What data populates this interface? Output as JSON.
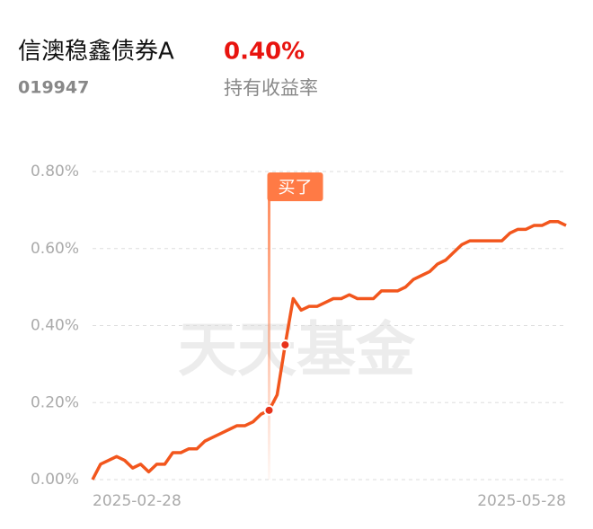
{
  "header": {
    "fund_name": "信澳稳鑫债券A",
    "return_value": "0.40%",
    "fund_code": "019947",
    "return_label": "持有收益率"
  },
  "chart_data": {
    "type": "line",
    "watermark": "天天基金",
    "color": "#f2561d",
    "categories": [
      "2025-02-28",
      null,
      null,
      null,
      null,
      null,
      null,
      null,
      null,
      null,
      null,
      null,
      null,
      null,
      null,
      null,
      null,
      null,
      null,
      null,
      null,
      null,
      null,
      null,
      null,
      null,
      null,
      null,
      null,
      null,
      null,
      null,
      null,
      null,
      null,
      null,
      null,
      null,
      null,
      null,
      null,
      null,
      null,
      null,
      null,
      null,
      null,
      null,
      null,
      null,
      null,
      null,
      null,
      null,
      null,
      null,
      null,
      null,
      null,
      "2025-05-28"
    ],
    "values": [
      0.0,
      0.04,
      0.05,
      0.06,
      0.05,
      0.03,
      0.04,
      0.02,
      0.04,
      0.04,
      0.07,
      0.07,
      0.08,
      0.08,
      0.1,
      0.11,
      0.12,
      0.13,
      0.14,
      0.14,
      0.15,
      0.17,
      0.18,
      0.22,
      0.35,
      0.47,
      0.44,
      0.45,
      0.45,
      0.46,
      0.47,
      0.47,
      0.48,
      0.47,
      0.47,
      0.47,
      0.49,
      0.49,
      0.49,
      0.5,
      0.52,
      0.53,
      0.54,
      0.56,
      0.57,
      0.59,
      0.61,
      0.62,
      0.62,
      0.62,
      0.62,
      0.62,
      0.64,
      0.65,
      0.65,
      0.66,
      0.66,
      0.67,
      0.67,
      0.66
    ],
    "ylim": [
      0,
      0.8
    ],
    "yticks": [
      {
        "value": 0,
        "label": "0.00%"
      },
      {
        "value": 0.2,
        "label": "0.20%"
      },
      {
        "value": 0.4,
        "label": "0.40%"
      },
      {
        "value": 0.6,
        "label": "0.60%"
      },
      {
        "value": 0.8,
        "label": "0.80%"
      }
    ],
    "grid": true,
    "annotation": {
      "text": "买了",
      "index": 22,
      "points": [
        22,
        24
      ]
    }
  }
}
